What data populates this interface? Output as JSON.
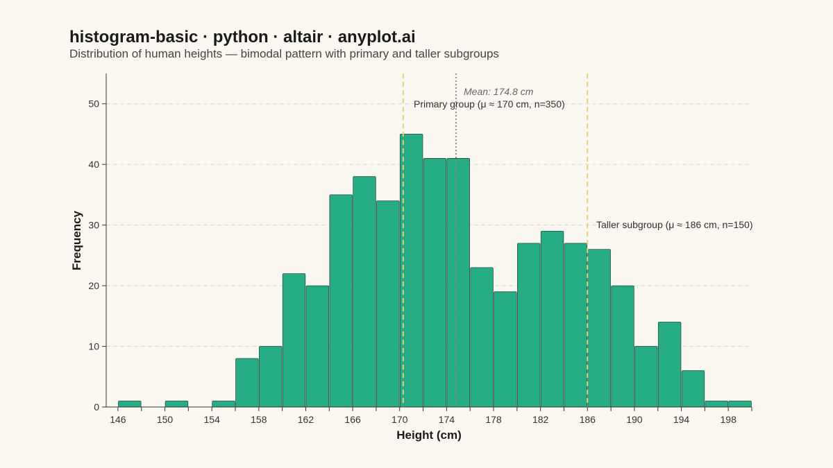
{
  "chart_data": {
    "type": "bar",
    "title": "histogram-basic · python · altair · anyplot.ai",
    "subtitle": "Distribution of human heights — bimodal pattern with primary and taller subgroups",
    "xlabel": "Height (cm)",
    "ylabel": "Frequency",
    "bin_width": 2,
    "xlim": [
      145,
      200
    ],
    "ylim": [
      0,
      55
    ],
    "x_ticks": [
      146,
      150,
      154,
      158,
      162,
      166,
      170,
      174,
      178,
      182,
      186,
      190,
      194,
      198
    ],
    "y_ticks": [
      0,
      10,
      20,
      30,
      40,
      50
    ],
    "grid": true,
    "bins": [
      {
        "start": 146,
        "end": 148,
        "count": 1
      },
      {
        "start": 148,
        "end": 150,
        "count": 0
      },
      {
        "start": 150,
        "end": 152,
        "count": 1
      },
      {
        "start": 152,
        "end": 154,
        "count": 0
      },
      {
        "start": 154,
        "end": 156,
        "count": 1
      },
      {
        "start": 156,
        "end": 158,
        "count": 8
      },
      {
        "start": 158,
        "end": 160,
        "count": 10
      },
      {
        "start": 160,
        "end": 162,
        "count": 22
      },
      {
        "start": 162,
        "end": 164,
        "count": 20
      },
      {
        "start": 164,
        "end": 166,
        "count": 35
      },
      {
        "start": 166,
        "end": 168,
        "count": 38
      },
      {
        "start": 168,
        "end": 170,
        "count": 34
      },
      {
        "start": 170,
        "end": 172,
        "count": 45
      },
      {
        "start": 172,
        "end": 174,
        "count": 41
      },
      {
        "start": 174,
        "end": 176,
        "count": 41
      },
      {
        "start": 176,
        "end": 178,
        "count": 23
      },
      {
        "start": 178,
        "end": 180,
        "count": 19
      },
      {
        "start": 180,
        "end": 182,
        "count": 27
      },
      {
        "start": 182,
        "end": 184,
        "count": 29
      },
      {
        "start": 184,
        "end": 186,
        "count": 27
      },
      {
        "start": 186,
        "end": 188,
        "count": 26
      },
      {
        "start": 188,
        "end": 190,
        "count": 20
      },
      {
        "start": 190,
        "end": 192,
        "count": 10
      },
      {
        "start": 192,
        "end": 194,
        "count": 14
      },
      {
        "start": 194,
        "end": 196,
        "count": 6
      },
      {
        "start": 196,
        "end": 198,
        "count": 1
      },
      {
        "start": 198,
        "end": 200,
        "count": 1
      }
    ],
    "reference_lines": [
      {
        "x": 170.3,
        "label": "Primary group (μ ≈ 170 cm, n=350)",
        "style": "dashed",
        "color": "#E8CF7A"
      },
      {
        "x": 174.8,
        "label": "Mean: 174.8 cm",
        "style": "dotted",
        "color": "#8A8A8A"
      },
      {
        "x": 186,
        "label": "Taller subgroup (μ ≈ 186 cm, n=150)",
        "style": "dashed",
        "color": "#E8CF7A"
      }
    ],
    "bar_color": "#26AD85",
    "bar_stroke": "#2F4F46"
  }
}
